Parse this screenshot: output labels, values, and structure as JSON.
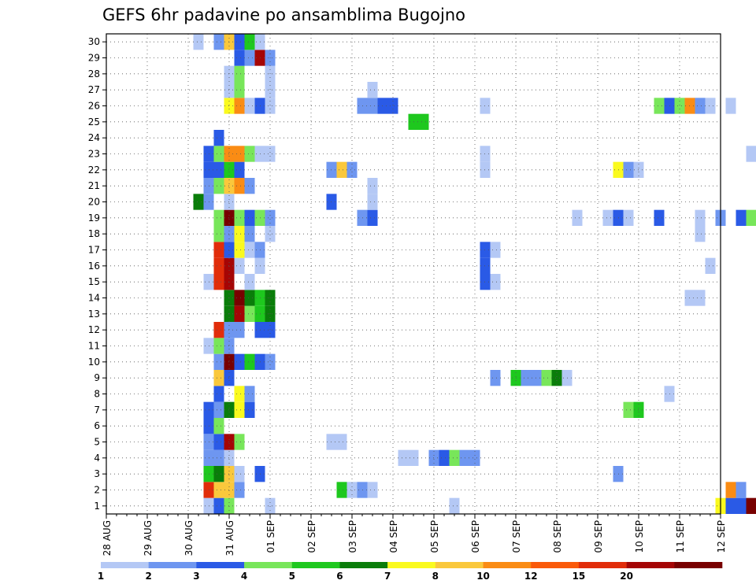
{
  "chart_data": {
    "type": "heatmap",
    "title": "GEFS 6hr padavine po ansamblima Bugojno",
    "x_ticks": [
      "28 AUG",
      "29 AUG",
      "30 AUG",
      "31 AUG",
      "01 SEP",
      "02 SEP",
      "03 SEP",
      "04 SEP",
      "05 SEP",
      "06 SEP",
      "07 SEP",
      "08 SEP",
      "09 SEP",
      "10 SEP",
      "11 SEP",
      "12 SEP"
    ],
    "y_ticks": [
      1,
      2,
      3,
      4,
      5,
      6,
      7,
      8,
      9,
      10,
      11,
      12,
      13,
      14,
      15,
      16,
      17,
      18,
      19,
      20,
      21,
      22,
      23,
      24,
      25,
      26,
      27,
      28,
      29,
      30
    ],
    "steps_per_day": 4,
    "grid": true,
    "colorbar": {
      "colors": [
        "#b4c8f5",
        "#6e96f0",
        "#2a5ae6",
        "#78e65a",
        "#1ec81e",
        "#0a7d0a",
        "#fafa1e",
        "#fac83c",
        "#fa8c14",
        "#fa5a0a",
        "#e12d0a",
        "#a50505",
        "#780000"
      ],
      "labels": [
        "1",
        "2",
        "3",
        "4",
        "5",
        "6",
        "7",
        "8",
        "10",
        "12",
        "15",
        "20"
      ]
    },
    "cells": [
      [
        1,
        2,
        0
      ],
      [
        1,
        3,
        2
      ],
      [
        1,
        4,
        3
      ],
      [
        1,
        8,
        0
      ],
      [
        1,
        26,
        0
      ],
      [
        1,
        52,
        6
      ],
      [
        1,
        53,
        2
      ],
      [
        1,
        54,
        2
      ],
      [
        1,
        55,
        12
      ],
      [
        1,
        56,
        11
      ],
      [
        1,
        57,
        11
      ],
      [
        1,
        58,
        7
      ],
      [
        1,
        59,
        2
      ],
      [
        2,
        2,
        10
      ],
      [
        2,
        3,
        7
      ],
      [
        2,
        4,
        7
      ],
      [
        2,
        5,
        1
      ],
      [
        2,
        15,
        4
      ],
      [
        2,
        16,
        0
      ],
      [
        2,
        17,
        1
      ],
      [
        2,
        18,
        0
      ],
      [
        2,
        53,
        8
      ],
      [
        2,
        54,
        1
      ],
      [
        2,
        58,
        3
      ],
      [
        2,
        59,
        0
      ],
      [
        3,
        2,
        4
      ],
      [
        3,
        3,
        5
      ],
      [
        3,
        4,
        7
      ],
      [
        3,
        5,
        0
      ],
      [
        3,
        7,
        2
      ],
      [
        3,
        42,
        1
      ],
      [
        4,
        2,
        1
      ],
      [
        4,
        3,
        1
      ],
      [
        4,
        4,
        0
      ],
      [
        4,
        21,
        0
      ],
      [
        4,
        22,
        0
      ],
      [
        4,
        24,
        1
      ],
      [
        4,
        25,
        2
      ],
      [
        4,
        26,
        3
      ],
      [
        4,
        27,
        1
      ],
      [
        4,
        28,
        1
      ],
      [
        5,
        2,
        1
      ],
      [
        5,
        3,
        2
      ],
      [
        5,
        4,
        11
      ],
      [
        5,
        5,
        3
      ],
      [
        5,
        14,
        0
      ],
      [
        5,
        15,
        0
      ],
      [
        5,
        56,
        3
      ],
      [
        5,
        57,
        4
      ],
      [
        6,
        2,
        2
      ],
      [
        6,
        3,
        3
      ],
      [
        7,
        2,
        2
      ],
      [
        7,
        3,
        1
      ],
      [
        7,
        4,
        5
      ],
      [
        7,
        5,
        6
      ],
      [
        7,
        6,
        2
      ],
      [
        7,
        43,
        3
      ],
      [
        7,
        44,
        4
      ],
      [
        8,
        3,
        2
      ],
      [
        8,
        5,
        6
      ],
      [
        8,
        6,
        1
      ],
      [
        8,
        47,
        0
      ],
      [
        9,
        3,
        7
      ],
      [
        9,
        4,
        2
      ],
      [
        9,
        30,
        1
      ],
      [
        9,
        32,
        4
      ],
      [
        9,
        33,
        1
      ],
      [
        9,
        34,
        1
      ],
      [
        9,
        35,
        3
      ],
      [
        9,
        36,
        5
      ],
      [
        9,
        37,
        0
      ],
      [
        10,
        3,
        1
      ],
      [
        10,
        4,
        12
      ],
      [
        10,
        5,
        2
      ],
      [
        10,
        6,
        4
      ],
      [
        10,
        7,
        2
      ],
      [
        10,
        8,
        1
      ],
      [
        10,
        56,
        1
      ],
      [
        11,
        2,
        0
      ],
      [
        11,
        3,
        3
      ],
      [
        11,
        4,
        1
      ],
      [
        12,
        3,
        10
      ],
      [
        12,
        4,
        1
      ],
      [
        12,
        5,
        1
      ],
      [
        12,
        7,
        2
      ],
      [
        12,
        8,
        2
      ],
      [
        13,
        4,
        5
      ],
      [
        13,
        5,
        11
      ],
      [
        13,
        6,
        3
      ],
      [
        13,
        7,
        4
      ],
      [
        13,
        8,
        5
      ],
      [
        14,
        4,
        5
      ],
      [
        14,
        5,
        12
      ],
      [
        14,
        6,
        5
      ],
      [
        14,
        7,
        4
      ],
      [
        14,
        8,
        5
      ],
      [
        14,
        49,
        0
      ],
      [
        14,
        50,
        0
      ],
      [
        15,
        2,
        0
      ],
      [
        15,
        3,
        10
      ],
      [
        15,
        4,
        11
      ],
      [
        15,
        6,
        0
      ],
      [
        15,
        29,
        2
      ],
      [
        15,
        30,
        0
      ],
      [
        16,
        3,
        10
      ],
      [
        16,
        4,
        11
      ],
      [
        16,
        5,
        0
      ],
      [
        16,
        7,
        0
      ],
      [
        16,
        29,
        2
      ],
      [
        16,
        51,
        0
      ],
      [
        17,
        3,
        10
      ],
      [
        17,
        4,
        2
      ],
      [
        17,
        5,
        6
      ],
      [
        17,
        6,
        0
      ],
      [
        17,
        7,
        1
      ],
      [
        17,
        29,
        2
      ],
      [
        17,
        30,
        0
      ],
      [
        18,
        3,
        3
      ],
      [
        18,
        4,
        1
      ],
      [
        18,
        5,
        6
      ],
      [
        18,
        6,
        1
      ],
      [
        18,
        8,
        0
      ],
      [
        18,
        50,
        0
      ],
      [
        19,
        3,
        3
      ],
      [
        19,
        4,
        12
      ],
      [
        19,
        5,
        3
      ],
      [
        19,
        6,
        2
      ],
      [
        19,
        7,
        3
      ],
      [
        19,
        8,
        1
      ],
      [
        19,
        17,
        1
      ],
      [
        19,
        18,
        2
      ],
      [
        19,
        38,
        0
      ],
      [
        19,
        41,
        0
      ],
      [
        19,
        42,
        2
      ],
      [
        19,
        43,
        0
      ],
      [
        19,
        46,
        2
      ],
      [
        19,
        50,
        0
      ],
      [
        19,
        52,
        1
      ],
      [
        19,
        54,
        2
      ],
      [
        19,
        55,
        3
      ],
      [
        19,
        56,
        12
      ],
      [
        19,
        57,
        11
      ],
      [
        20,
        1,
        5
      ],
      [
        20,
        2,
        1
      ],
      [
        20,
        4,
        0
      ],
      [
        20,
        14,
        2
      ],
      [
        20,
        18,
        0
      ],
      [
        21,
        2,
        1
      ],
      [
        21,
        3,
        3
      ],
      [
        21,
        4,
        7
      ],
      [
        21,
        5,
        8
      ],
      [
        21,
        6,
        1
      ],
      [
        21,
        18,
        0
      ],
      [
        22,
        2,
        2
      ],
      [
        22,
        3,
        2
      ],
      [
        22,
        4,
        4
      ],
      [
        22,
        5,
        2
      ],
      [
        22,
        14,
        1
      ],
      [
        22,
        15,
        7
      ],
      [
        22,
        16,
        1
      ],
      [
        22,
        29,
        0
      ],
      [
        22,
        42,
        6
      ],
      [
        22,
        43,
        1
      ],
      [
        22,
        44,
        0
      ],
      [
        23,
        2,
        2
      ],
      [
        23,
        3,
        3
      ],
      [
        23,
        4,
        8
      ],
      [
        23,
        5,
        8
      ],
      [
        23,
        6,
        3
      ],
      [
        23,
        7,
        0
      ],
      [
        23,
        8,
        0
      ],
      [
        23,
        29,
        0
      ],
      [
        23,
        55,
        0
      ],
      [
        23,
        56,
        1
      ],
      [
        23,
        57,
        1
      ],
      [
        23,
        58,
        8
      ],
      [
        23,
        59,
        2
      ],
      [
        24,
        3,
        2
      ],
      [
        25,
        22,
        4
      ],
      [
        25,
        23,
        4
      ],
      [
        26,
        4,
        6
      ],
      [
        26,
        5,
        8
      ],
      [
        26,
        6,
        0
      ],
      [
        26,
        7,
        2
      ],
      [
        26,
        8,
        0
      ],
      [
        26,
        17,
        1
      ],
      [
        26,
        18,
        1
      ],
      [
        26,
        19,
        2
      ],
      [
        26,
        20,
        2
      ],
      [
        26,
        29,
        0
      ],
      [
        26,
        46,
        3
      ],
      [
        26,
        47,
        2
      ],
      [
        26,
        48,
        3
      ],
      [
        26,
        49,
        8
      ],
      [
        26,
        50,
        1
      ],
      [
        26,
        51,
        0
      ],
      [
        26,
        53,
        0
      ],
      [
        27,
        4,
        0
      ],
      [
        27,
        5,
        3
      ],
      [
        27,
        8,
        0
      ],
      [
        27,
        18,
        0
      ],
      [
        28,
        4,
        0
      ],
      [
        28,
        5,
        3
      ],
      [
        28,
        8,
        0
      ],
      [
        29,
        5,
        2
      ],
      [
        29,
        6,
        1
      ],
      [
        29,
        7,
        11
      ],
      [
        29,
        8,
        1
      ],
      [
        30,
        1,
        0
      ],
      [
        30,
        3,
        1
      ],
      [
        30,
        4,
        7
      ],
      [
        30,
        5,
        2
      ],
      [
        30,
        6,
        4
      ],
      [
        30,
        7,
        0
      ],
      [
        31,
        2,
        1
      ],
      [
        31,
        4,
        8
      ],
      [
        31,
        6,
        0
      ],
      [
        31,
        7,
        0
      ],
      [
        32,
        2,
        2
      ],
      [
        32,
        3,
        4
      ],
      [
        32,
        4,
        7
      ],
      [
        32,
        6,
        1
      ],
      [
        32,
        7,
        0
      ],
      [
        32,
        8,
        1
      ],
      [
        33,
        2,
        1
      ],
      [
        33,
        3,
        2
      ],
      [
        33,
        4,
        8
      ],
      [
        33,
        5,
        8
      ],
      [
        33,
        6,
        2
      ],
      [
        33,
        7,
        8
      ],
      [
        34,
        2,
        2
      ],
      [
        34,
        3,
        2
      ],
      [
        34,
        4,
        8
      ],
      [
        34,
        5,
        2
      ],
      [
        34,
        6,
        0
      ],
      [
        35,
        2,
        0
      ],
      [
        35,
        3,
        2
      ],
      [
        35,
        4,
        2
      ],
      [
        35,
        5,
        0
      ],
      [
        35,
        6,
        2
      ]
    ],
    "cells_t_offset_cols": [],
    "ylim": [
      0,
      30
    ]
  }
}
